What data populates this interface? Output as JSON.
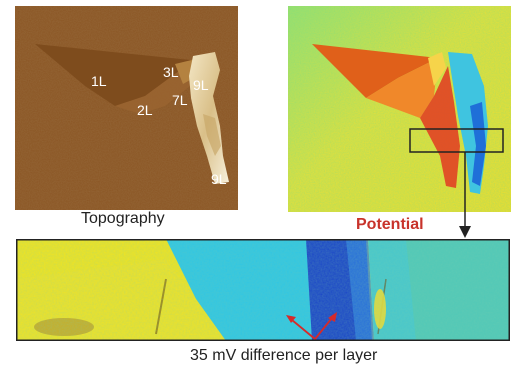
{
  "topography": {
    "layer_labels": [
      "1L",
      "2L",
      "3L",
      "7L",
      "9L",
      "9L"
    ]
  },
  "captions": {
    "topography": "Topography",
    "potential": "Potential",
    "difference": "35 mV difference per layer"
  },
  "colors": {
    "caption_red": "#c8332b",
    "arrow_red": "#d62a2a",
    "connector": "#222222"
  }
}
